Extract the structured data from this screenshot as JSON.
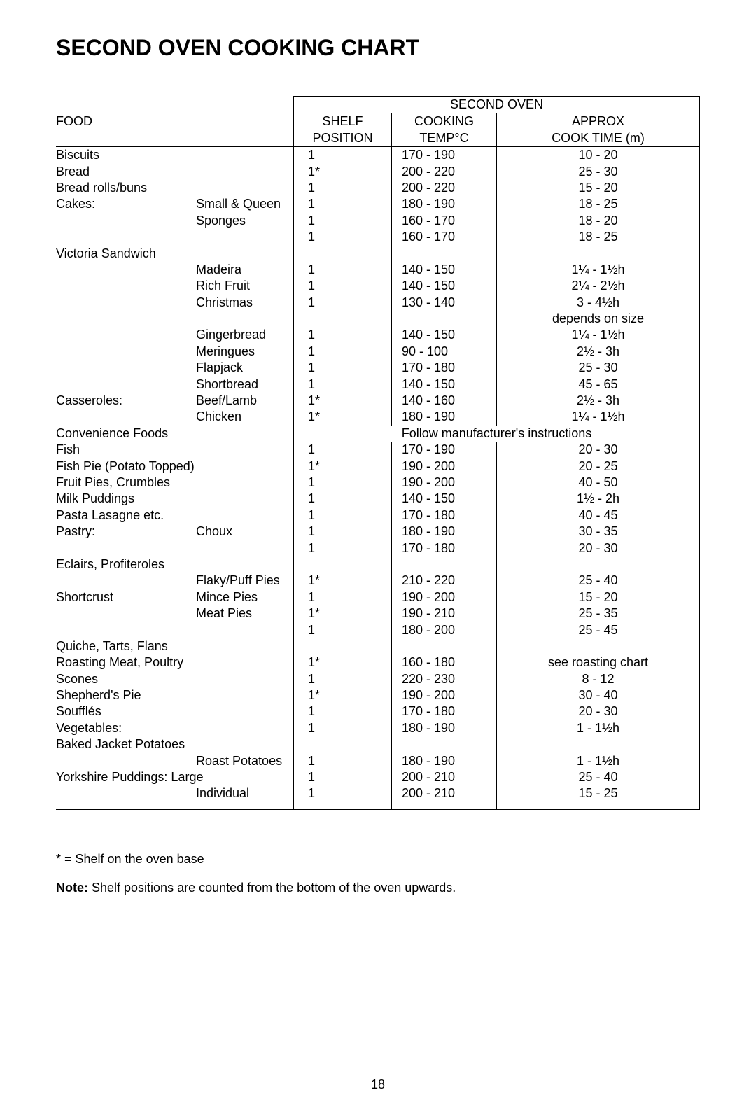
{
  "title": "SECOND OVEN COOKING CHART",
  "header": {
    "second_oven": "SECOND OVEN",
    "food": "FOOD",
    "shelf_l1": "SHELF",
    "shelf_l2": "POSITION",
    "cook_l1": "COOKING",
    "cook_l2": "TEMP°C",
    "time_l1": "APPROX",
    "time_l2": "COOK TIME (m)"
  },
  "rows": [
    {
      "food_main": "Biscuits",
      "food_sub": "",
      "shelf": "1",
      "temp": "170 - 190",
      "time": "10 - 20"
    },
    {
      "food_main": "Bread",
      "food_sub": "",
      "shelf": "1*",
      "temp": "200 - 220",
      "time": "25 - 30"
    },
    {
      "food_main": "Bread rolls/buns",
      "food_sub": "",
      "shelf": "1",
      "temp": "200 - 220",
      "time": "15 - 20"
    },
    {
      "food_main": "Cakes:",
      "food_sub": "Small & Queen",
      "shelf": "1",
      "temp": "180 - 190",
      "time": "18 - 25"
    },
    {
      "food_main": "",
      "food_sub": "Sponges",
      "shelf": "1",
      "temp": "160 - 170",
      "time": "18 - 20"
    },
    {
      "food_main": "",
      "food_sub": "Victoria Sandwich",
      "shelf": "1",
      "temp": "160 - 170",
      "time": "18 - 25"
    },
    {
      "food_main": "",
      "food_sub": "Madeira",
      "shelf": "1",
      "temp": "140 - 150",
      "time": "1¼ - 1½h"
    },
    {
      "food_main": "",
      "food_sub": "Rich Fruit",
      "shelf": "1",
      "temp": "140 - 150",
      "time": "2¼ - 2½h"
    },
    {
      "food_main": "",
      "food_sub": "Christmas",
      "shelf": "1",
      "temp": "130 - 140",
      "time": "3 - 4½h"
    },
    {
      "food_main": "",
      "food_sub": "",
      "shelf": "",
      "temp": "",
      "time": "depends on size"
    },
    {
      "food_main": "",
      "food_sub": "Gingerbread",
      "shelf": "1",
      "temp": "140 - 150",
      "time": "1¼ - 1½h"
    },
    {
      "food_main": "",
      "food_sub": "Meringues",
      "shelf": "1",
      "temp": "  90 - 100",
      "time": "2½ - 3h"
    },
    {
      "food_main": "",
      "food_sub": "Flapjack",
      "shelf": "1",
      "temp": "170 - 180",
      "time": "25 - 30"
    },
    {
      "food_main": "",
      "food_sub": "Shortbread",
      "shelf": "1",
      "temp": "140 - 150",
      "time": "45 - 65"
    },
    {
      "food_main": "Casseroles:",
      "food_sub": "Beef/Lamb",
      "shelf": "1*",
      "temp": "140 - 160",
      "time": "2½ - 3h"
    },
    {
      "food_main": "",
      "food_sub": "Chicken",
      "shelf": "1*",
      "temp": "180 - 190",
      "time": "1¼ - 1½h"
    },
    {
      "food_main": "Convenience Foods",
      "food_sub": "",
      "shelf": "",
      "temp": "",
      "time": "",
      "full_span": "Follow manufacturer's instructions"
    },
    {
      "food_main": "Fish",
      "food_sub": "",
      "shelf": "1",
      "temp": "170 - 190",
      "time": "20 - 30"
    },
    {
      "food_main": "Fish Pie (Potato Topped)",
      "food_sub": "",
      "shelf": "1*",
      "temp": "190 - 200",
      "time": "20 - 25"
    },
    {
      "food_main": "Fruit Pies, Crumbles",
      "food_sub": "",
      "shelf": "1",
      "temp": "190 - 200",
      "time": "40 - 50"
    },
    {
      "food_main": "Milk Puddings",
      "food_sub": "",
      "shelf": "1",
      "temp": "140 - 150",
      "time": "1½ - 2h"
    },
    {
      "food_main": "Pasta Lasagne etc.",
      "food_sub": "",
      "shelf": "1",
      "temp": "170 - 180",
      "time": "40 - 45"
    },
    {
      "food_main": "Pastry:",
      "food_sub": "Choux",
      "shelf": "1",
      "temp": "180 - 190",
      "time": "30 - 35"
    },
    {
      "food_main": "",
      "food_sub": "Eclairs, Profiteroles",
      "shelf": "1",
      "temp": "170 - 180",
      "time": "20 - 30"
    },
    {
      "food_main": "",
      "food_sub": "Flaky/Puff Pies",
      "shelf": "1*",
      "temp": "210 - 220",
      "time": "25 - 40"
    },
    {
      "food_main": "Shortcrust",
      "food_sub": "Mince Pies",
      "shelf": "1",
      "temp": "190 - 200",
      "time": "15 - 20"
    },
    {
      "food_main": "",
      "food_sub": "Meat Pies",
      "shelf": "1*",
      "temp": "190 - 210",
      "time": "25 - 35"
    },
    {
      "food_main": "",
      "food_sub": "Quiche, Tarts, Flans",
      "shelf": "1",
      "temp": "180 - 200",
      "time": "25 - 45"
    },
    {
      "food_main": "Roasting Meat, Poultry",
      "food_sub": "",
      "shelf": "1*",
      "temp": "160 - 180",
      "time": "see roasting chart"
    },
    {
      "food_main": "Scones",
      "food_sub": "",
      "shelf": "1",
      "temp": "220 - 230",
      "time": "8 - 12"
    },
    {
      "food_main": "Shepherd's Pie",
      "food_sub": "",
      "shelf": "1*",
      "temp": "190 - 200",
      "time": "30 - 40"
    },
    {
      "food_main": "Soufflés",
      "food_sub": "",
      "shelf": "1",
      "temp": "170 - 180",
      "time": "20 - 30"
    },
    {
      "food_main": "Vegetables:",
      "food_sub": "Baked Jacket Potatoes",
      "shelf": "1",
      "temp": "180 - 190",
      "time": "1 - 1½h"
    },
    {
      "food_main": "",
      "food_sub": "Roast Potatoes",
      "shelf": "1",
      "temp": "180 - 190",
      "time": "1 - 1½h"
    },
    {
      "food_main": "Yorkshire Puddings: Large",
      "food_sub": "",
      "shelf": "1",
      "temp": "200 - 210",
      "time": "25 - 40"
    },
    {
      "food_main": "",
      "food_sub": "Individual",
      "shelf": "1",
      "temp": "200 - 210",
      "time": "15 - 25"
    }
  ],
  "footnote": "* = Shelf on the oven base",
  "note_bold": "Note:",
  "note_rest": " Shelf positions are counted from the bottom of the oven upwards.",
  "page_num": "18"
}
